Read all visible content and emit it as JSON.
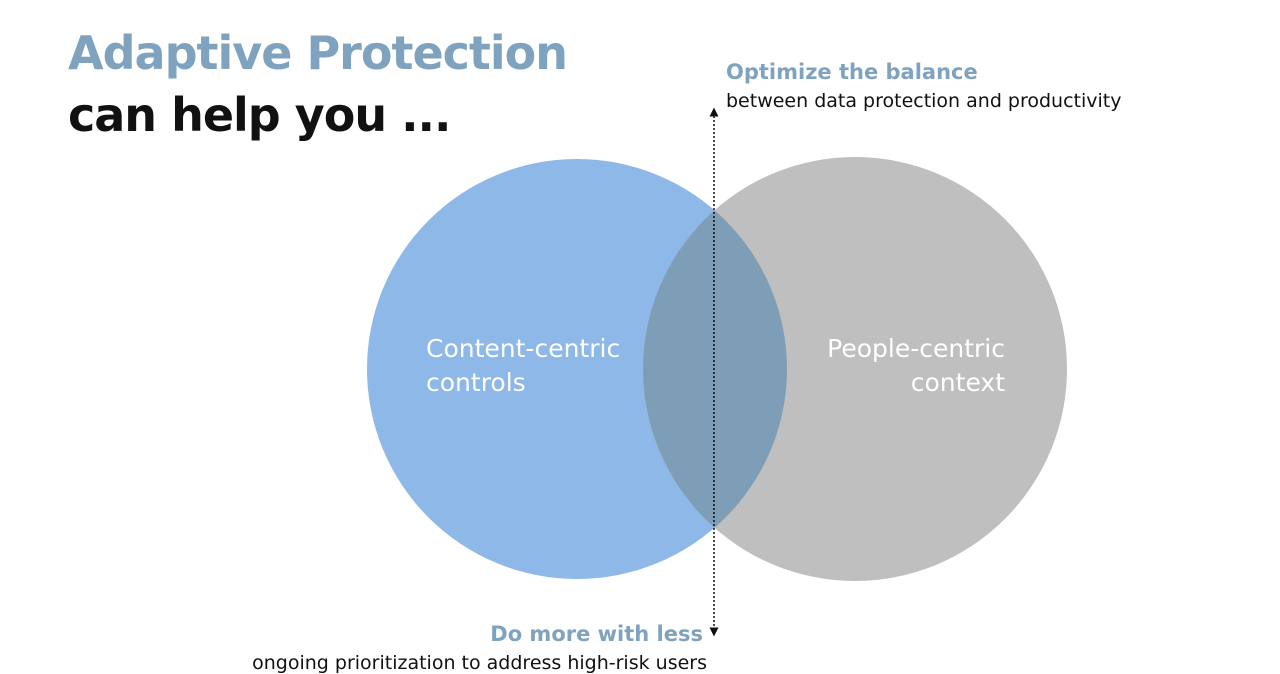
{
  "title": {
    "line1": "Adaptive Protection",
    "line2": "can help you ..."
  },
  "top_annotation": {
    "heading": "Optimize the balance",
    "subtext": "between data protection and productivity"
  },
  "bottom_annotation": {
    "heading": "Do more with less",
    "subtext": "ongoing prioritization to address high-risk users"
  },
  "venn": {
    "left": {
      "line1": "Content-centric",
      "line2": "controls",
      "color": "#8db8e8"
    },
    "right": {
      "line1": "People-centric",
      "line2": "context",
      "color": "#bfbfbf"
    },
    "overlap_color": "#7e9db6"
  }
}
